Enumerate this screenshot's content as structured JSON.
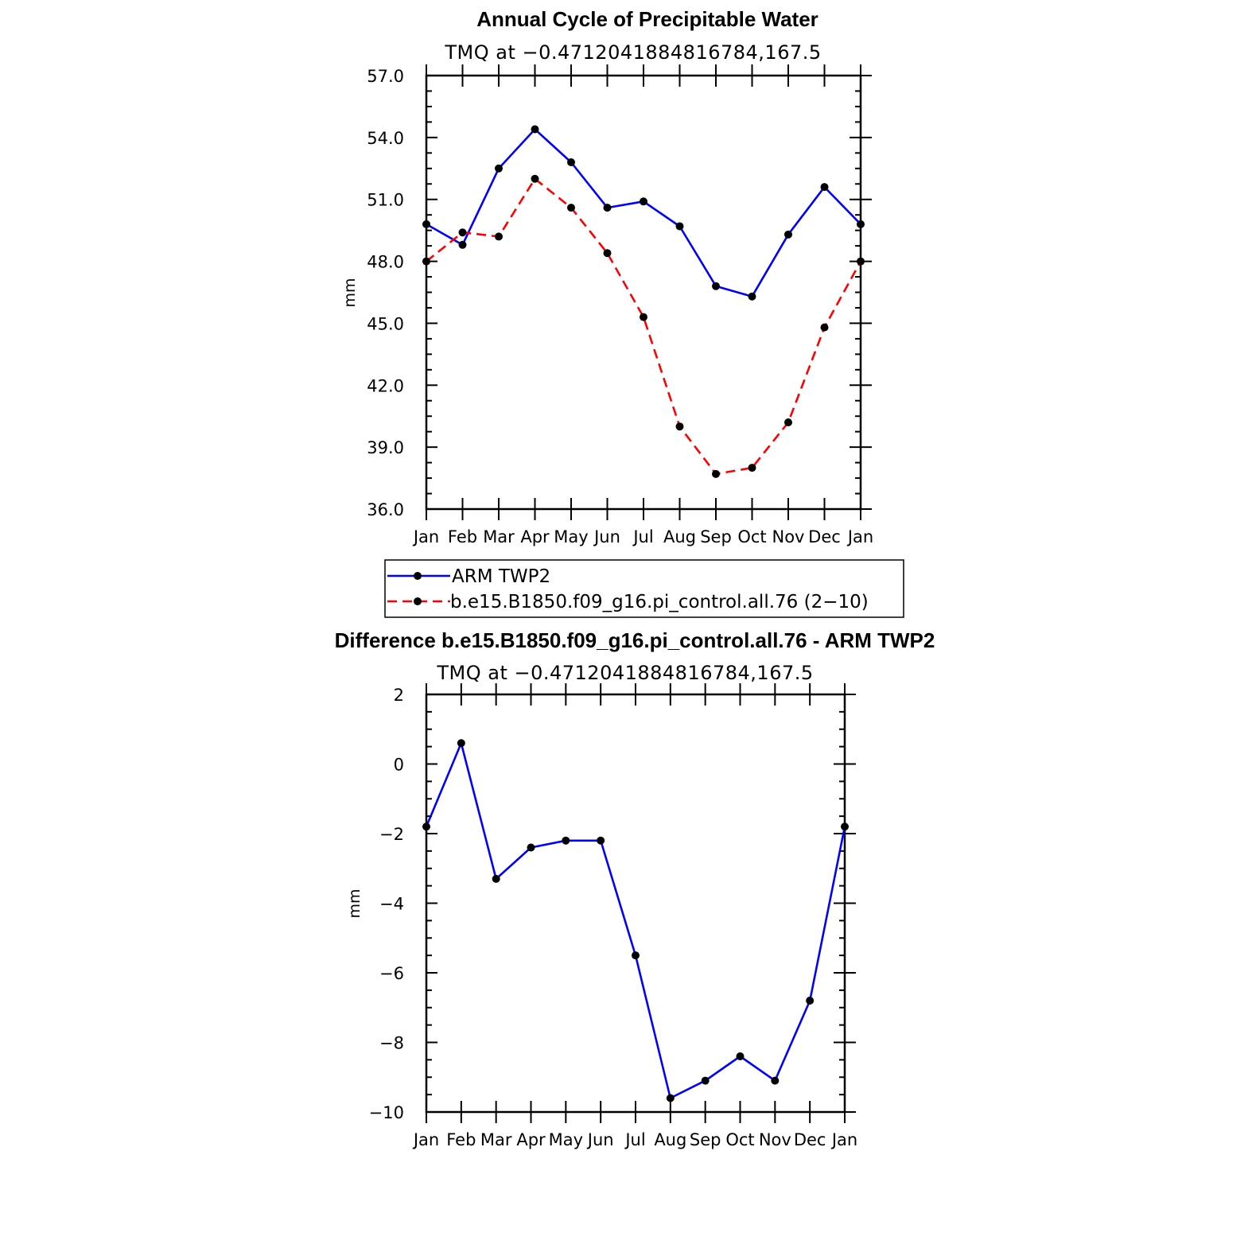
{
  "chart_data": [
    {
      "type": "line",
      "title": "Annual Cycle of Precipitable Water",
      "subtitle": "TMQ at −0.4712041884816784,167.5",
      "ylabel": "mm",
      "xlabel": "",
      "ylim": [
        36.0,
        57.0
      ],
      "yticks": [
        "36.0",
        "39.0",
        "42.0",
        "45.0",
        "48.0",
        "51.0",
        "54.0",
        "57.0"
      ],
      "categories": [
        "Jan",
        "Feb",
        "Mar",
        "Apr",
        "May",
        "Jun",
        "Jul",
        "Aug",
        "Sep",
        "Oct",
        "Nov",
        "Dec",
        "Jan"
      ],
      "series": [
        {
          "name": "ARM TWP2",
          "color": "#0000ff",
          "style": "solid",
          "values": [
            49.8,
            48.8,
            52.5,
            54.4,
            52.8,
            50.6,
            50.9,
            49.7,
            46.8,
            46.3,
            49.3,
            51.6,
            49.8
          ]
        },
        {
          "name": "b.e15.B1850.f09_g16.pi_control.all.76 (2−10)",
          "color": "#ff0000",
          "style": "dashed",
          "values": [
            48.0,
            49.4,
            49.2,
            52.0,
            50.6,
            48.4,
            45.3,
            40.0,
            37.7,
            38.0,
            40.2,
            44.8,
            48.0
          ]
        }
      ],
      "legend": "bottom-center"
    },
    {
      "type": "line",
      "title": "Difference b.e15.B1850.f09_g16.pi_control.all.76 - ARM TWP2",
      "subtitle": "TMQ at −0.4712041884816784,167.5",
      "ylabel": "mm",
      "xlabel": "",
      "ylim": [
        -10,
        2
      ],
      "yticks": [
        "−10",
        "−8",
        "−6",
        "−4",
        "−2",
        "0",
        "2"
      ],
      "categories": [
        "Jan",
        "Feb",
        "Mar",
        "Apr",
        "May",
        "Jun",
        "Jul",
        "Aug",
        "Sep",
        "Oct",
        "Nov",
        "Dec",
        "Jan"
      ],
      "series": [
        {
          "name": "Difference",
          "color": "#0000ff",
          "style": "solid",
          "values": [
            -1.8,
            0.6,
            -3.3,
            -2.4,
            -2.2,
            -2.2,
            -5.5,
            -9.6,
            -9.1,
            -8.4,
            -9.1,
            -6.8,
            -1.8
          ]
        }
      ]
    }
  ]
}
